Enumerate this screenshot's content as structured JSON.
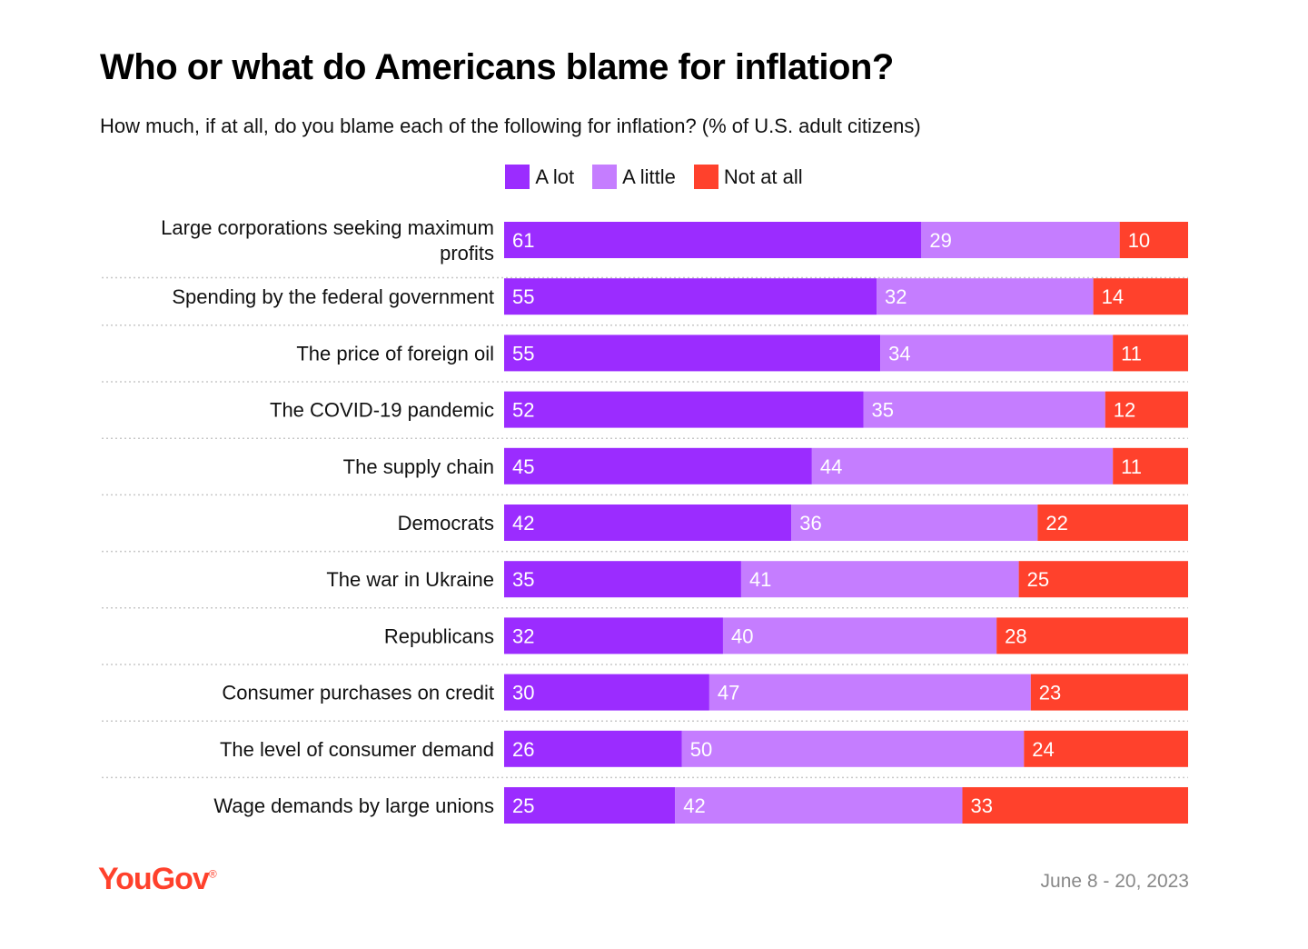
{
  "header": {
    "title": "Who or what do Americans blame for inflation?",
    "subtitle": "How much, if at all, do you blame each of the following for inflation? (% of U.S. adult citizens)"
  },
  "footer": {
    "logo": "YouGov",
    "logo_mark": "®",
    "date": "June 8 - 20, 2023"
  },
  "chart_data": {
    "type": "bar",
    "orientation": "horizontal",
    "stacked": true,
    "categories": [
      "Large corporations seeking maximum profits",
      "Spending by the federal government",
      "The price of foreign oil",
      "The COVID-19 pandemic",
      "The supply chain",
      "Democrats",
      "The war in Ukraine",
      "Republicans",
      "Consumer purchases on credit",
      "The level of consumer demand",
      "Wage demands by large unions"
    ],
    "series": [
      {
        "name": "A lot",
        "color": "#9b2cff",
        "values": [
          61,
          55,
          55,
          52,
          45,
          42,
          35,
          32,
          30,
          26,
          25
        ]
      },
      {
        "name": "A little",
        "color": "#c57dff",
        "values": [
          29,
          32,
          34,
          35,
          44,
          36,
          41,
          40,
          47,
          50,
          42
        ]
      },
      {
        "name": "Not at all",
        "color": "#ff412c",
        "values": [
          10,
          14,
          11,
          12,
          11,
          22,
          25,
          28,
          23,
          24,
          33
        ]
      }
    ],
    "legend_position": "top-center",
    "grid": false
  }
}
